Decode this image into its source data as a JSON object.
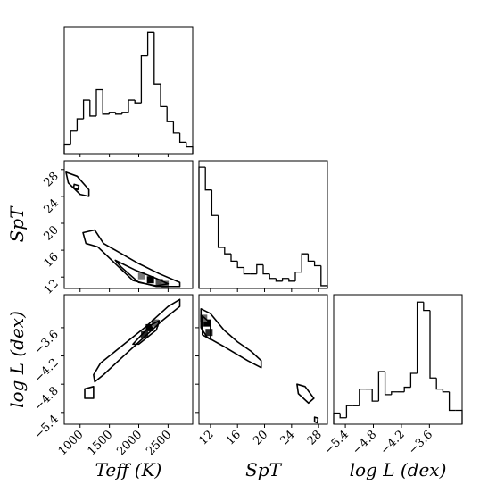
{
  "chart_data": [
    {
      "type": "histogram",
      "xlim": [
        730,
        2920
      ],
      "ylim": [
        0,
        135
      ],
      "bins": [
        730,
        839.5,
        949,
        1058.5,
        1168,
        1277.5,
        1387,
        1496.5,
        1606,
        1715.5,
        1825,
        1934.5,
        2044,
        2153.5,
        2263,
        2372.5,
        2482,
        2591.5,
        2701,
        2810.5,
        2920
      ],
      "counts": [
        10,
        24,
        37,
        57,
        40,
        68,
        42,
        44,
        42,
        44,
        57,
        54,
        104,
        129,
        74,
        50,
        34,
        22,
        12,
        7
      ],
      "xticks": [
        1000,
        1500,
        2000,
        2500
      ],
      "xtick_labels": false,
      "color": "#000000"
    },
    {
      "type": "contour",
      "xlim": [
        730,
        2920
      ],
      "ylim": [
        10.3,
        29.3
      ],
      "ylabel": "SpT",
      "xticks": [
        1000,
        1500,
        2000,
        2500
      ],
      "xtick_labels": false,
      "yticks": [
        12,
        16,
        20,
        24,
        28
      ],
      "ytick_labels": true,
      "contours": [
        [
          [
            760,
            27.6
          ],
          [
            950,
            27
          ],
          [
            1150,
            25
          ],
          [
            1150,
            24
          ],
          [
            1000,
            24.3
          ],
          [
            800,
            26
          ]
        ],
        [
          [
            900,
            25.8
          ],
          [
            980,
            25.6
          ],
          [
            960,
            25
          ],
          [
            890,
            25.3
          ]
        ],
        [
          [
            1050,
            18.6
          ],
          [
            1250,
            19
          ],
          [
            1400,
            17
          ],
          [
            1700,
            15.5
          ],
          [
            2000,
            14
          ],
          [
            2350,
            12.5
          ],
          [
            2700,
            11.2
          ],
          [
            2700,
            10.6
          ],
          [
            2300,
            10.6
          ],
          [
            1900,
            11.5
          ],
          [
            1600,
            14
          ],
          [
            1300,
            16.5
          ],
          [
            1100,
            17
          ]
        ],
        [
          [
            1600,
            14.5
          ],
          [
            1950,
            13
          ],
          [
            2300,
            11.8
          ],
          [
            2500,
            11
          ],
          [
            2300,
            10.7
          ],
          [
            2000,
            11.2
          ],
          [
            1700,
            13.5
          ]
        ]
      ],
      "density": [
        [
          2200,
          11.6,
          1
        ],
        [
          2350,
          11.2,
          0.6
        ],
        [
          2050,
          12.2,
          0.4
        ],
        [
          2450,
          10.9,
          0.5
        ]
      ]
    },
    {
      "type": "histogram",
      "xlim": [
        10.3,
        29.3
      ],
      "ylim": [
        0,
        140
      ],
      "bins": [
        10.3,
        11.25,
        12.2,
        13.15,
        14.1,
        15.05,
        16,
        16.95,
        17.9,
        18.85,
        19.8,
        20.75,
        21.7,
        22.65,
        23.6,
        24.55,
        25.5,
        26.45,
        27.4,
        28.35,
        29.3
      ],
      "counts": [
        133,
        108,
        80,
        45,
        38,
        30,
        23,
        16,
        16,
        26,
        16,
        11,
        8,
        11,
        8,
        18,
        38,
        30,
        25,
        3
      ],
      "xticks": [
        12,
        16,
        20,
        24,
        28
      ],
      "xtick_labels": false,
      "color": "#000000"
    },
    {
      "type": "contour",
      "xlim": [
        730,
        2920
      ],
      "ylim": [
        -5.65,
        -2.9
      ],
      "xlabel": "Teff (K)",
      "ylabel": "log L (dex)",
      "xticks": [
        1000,
        1500,
        2000,
        2500
      ],
      "xtick_labels": true,
      "yticks": [
        {
          "value": -5.4,
          "label": "−5.4"
        },
        {
          "value": -4.8,
          "label": "−4.8"
        },
        {
          "value": -4.2,
          "label": "−4.2"
        },
        {
          "value": -3.6,
          "label": "−3.6"
        }
      ],
      "ytick_labels": true,
      "contours": [
        [
          [
            1080,
            -4.9
          ],
          [
            1230,
            -4.85
          ],
          [
            1230,
            -5.1
          ],
          [
            1080,
            -5.1
          ]
        ],
        [
          [
            1230,
            -4.6
          ],
          [
            1350,
            -4.35
          ],
          [
            1700,
            -4.0
          ],
          [
            2100,
            -3.6
          ],
          [
            2500,
            -3.15
          ],
          [
            2700,
            -3.0
          ],
          [
            2700,
            -3.15
          ],
          [
            2400,
            -3.45
          ],
          [
            2050,
            -3.85
          ],
          [
            1700,
            -4.25
          ],
          [
            1400,
            -4.6
          ],
          [
            1250,
            -4.75
          ]
        ],
        [
          [
            1900,
            -3.95
          ],
          [
            2200,
            -3.55
          ],
          [
            2350,
            -3.45
          ],
          [
            2300,
            -3.65
          ],
          [
            2000,
            -3.95
          ]
        ]
      ],
      "density": [
        [
          2180,
          -3.6,
          1
        ],
        [
          2100,
          -3.75,
          0.8
        ],
        [
          2280,
          -3.5,
          0.5
        ]
      ]
    },
    {
      "type": "contour",
      "xlim": [
        10.3,
        29.3
      ],
      "ylim": [
        -5.65,
        -2.9
      ],
      "xlabel": "SpT",
      "xticks": [
        12,
        16,
        20,
        24,
        28
      ],
      "xtick_labels": true,
      "yticks": [
        {
          "value": -5.4,
          "label": "−5.4"
        },
        {
          "value": -4.8,
          "label": "−4.8"
        },
        {
          "value": -4.2,
          "label": "−4.2"
        },
        {
          "value": -3.6,
          "label": "−3.6"
        }
      ],
      "ytick_labels": false,
      "contours": [
        [
          [
            10.6,
            -3.2
          ],
          [
            12,
            -3.3
          ],
          [
            14,
            -3.65
          ],
          [
            16,
            -3.9
          ],
          [
            18,
            -4.1
          ],
          [
            19.5,
            -4.3
          ],
          [
            19.5,
            -4.45
          ],
          [
            17.5,
            -4.3
          ],
          [
            14,
            -4.0
          ],
          [
            11.5,
            -3.8
          ],
          [
            10.6,
            -3.6
          ]
        ],
        [
          [
            10.8,
            -3.35
          ],
          [
            12,
            -3.5
          ],
          [
            12,
            -3.85
          ],
          [
            10.8,
            -3.75
          ]
        ],
        [
          [
            24.8,
            -4.8
          ],
          [
            26,
            -4.85
          ],
          [
            27.3,
            -5.1
          ],
          [
            26.5,
            -5.2
          ],
          [
            25,
            -5.0
          ]
        ],
        [
          [
            27.4,
            -5.5
          ],
          [
            27.9,
            -5.52
          ],
          [
            27.8,
            -5.62
          ],
          [
            27.4,
            -5.6
          ]
        ]
      ],
      "density": [
        [
          11.5,
          -3.5,
          1
        ],
        [
          11.8,
          -3.7,
          0.8
        ],
        [
          11,
          -3.4,
          0.5
        ]
      ]
    },
    {
      "type": "histogram",
      "xlim": [
        -5.65,
        -2.9
      ],
      "ylim": [
        0,
        140
      ],
      "xlabel": "log L (dex)",
      "bins": [
        -5.65,
        -5.5125,
        -5.375,
        -5.2375,
        -5.1,
        -4.9625,
        -4.825,
        -4.6875,
        -4.55,
        -4.4125,
        -4.275,
        -4.1375,
        -4,
        -3.8625,
        -3.725,
        -3.5875,
        -3.45,
        -3.3125,
        -3.175,
        -3.0375,
        -2.9
      ],
      "counts": [
        12,
        7,
        20,
        20,
        38,
        38,
        25,
        57,
        32,
        35,
        35,
        40,
        55,
        132,
        123,
        50,
        38,
        35,
        15,
        15
      ],
      "xticks": [
        {
          "value": -5.4,
          "label": "−5.4"
        },
        {
          "value": -4.8,
          "label": "−4.8"
        },
        {
          "value": -4.2,
          "label": "−4.2"
        },
        {
          "value": -3.6,
          "label": "−3.6"
        }
      ],
      "xtick_labels": true,
      "color": "#000000"
    }
  ]
}
